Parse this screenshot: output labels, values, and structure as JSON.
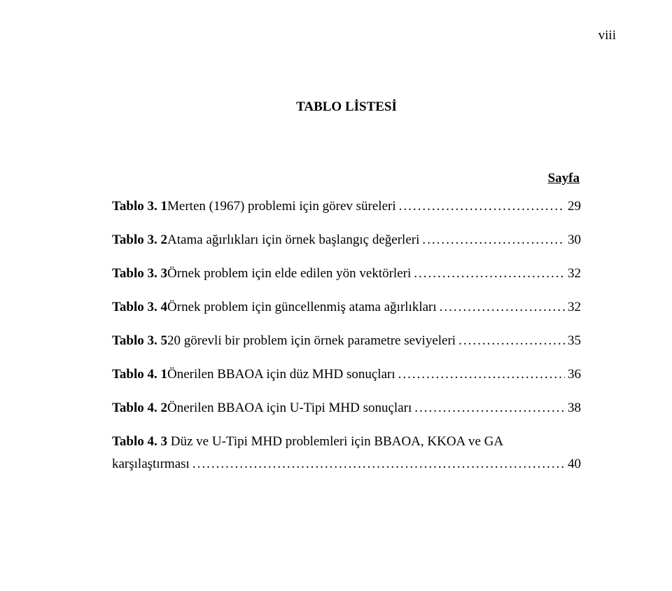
{
  "page_number": "viii",
  "heading": "TABLO LİSTESİ",
  "column_header": "Sayfa",
  "entries": [
    {
      "label": "Tablo 3. 1 ",
      "title": "Merten (1967) problemi için görev süreleri",
      "page": "29"
    },
    {
      "label": "Tablo 3. 2 ",
      "title": "Atama ağırlıkları için örnek başlangıç değerleri",
      "page": "30"
    },
    {
      "label": "Tablo 3. 3 ",
      "title": "Örnek problem için elde edilen yön vektörleri",
      "page": "32"
    },
    {
      "label": "Tablo 3. 4 ",
      "title": "Örnek problem için güncellenmiş atama ağırlıkları",
      "page": "32"
    },
    {
      "label": "Tablo 3. 5 ",
      "title": "20 görevli bir problem için örnek parametre seviyeleri",
      "page": "35"
    },
    {
      "label": "Tablo 4. 1 ",
      "title": "Önerilen BBAOA için düz MHD sonuçları",
      "page": "36"
    },
    {
      "label": "Tablo 4. 2 ",
      "title": "Önerilen BBAOA için U-Tipi MHD sonuçları",
      "page": "38"
    }
  ],
  "multiline_entry": {
    "label": "Tablo 4. 3 ",
    "title_line1": "Düz ve U-Tipi MHD problemleri için BBAOA, KKOA ve GA",
    "title_line2": "karşılaştırması",
    "page": "40"
  }
}
